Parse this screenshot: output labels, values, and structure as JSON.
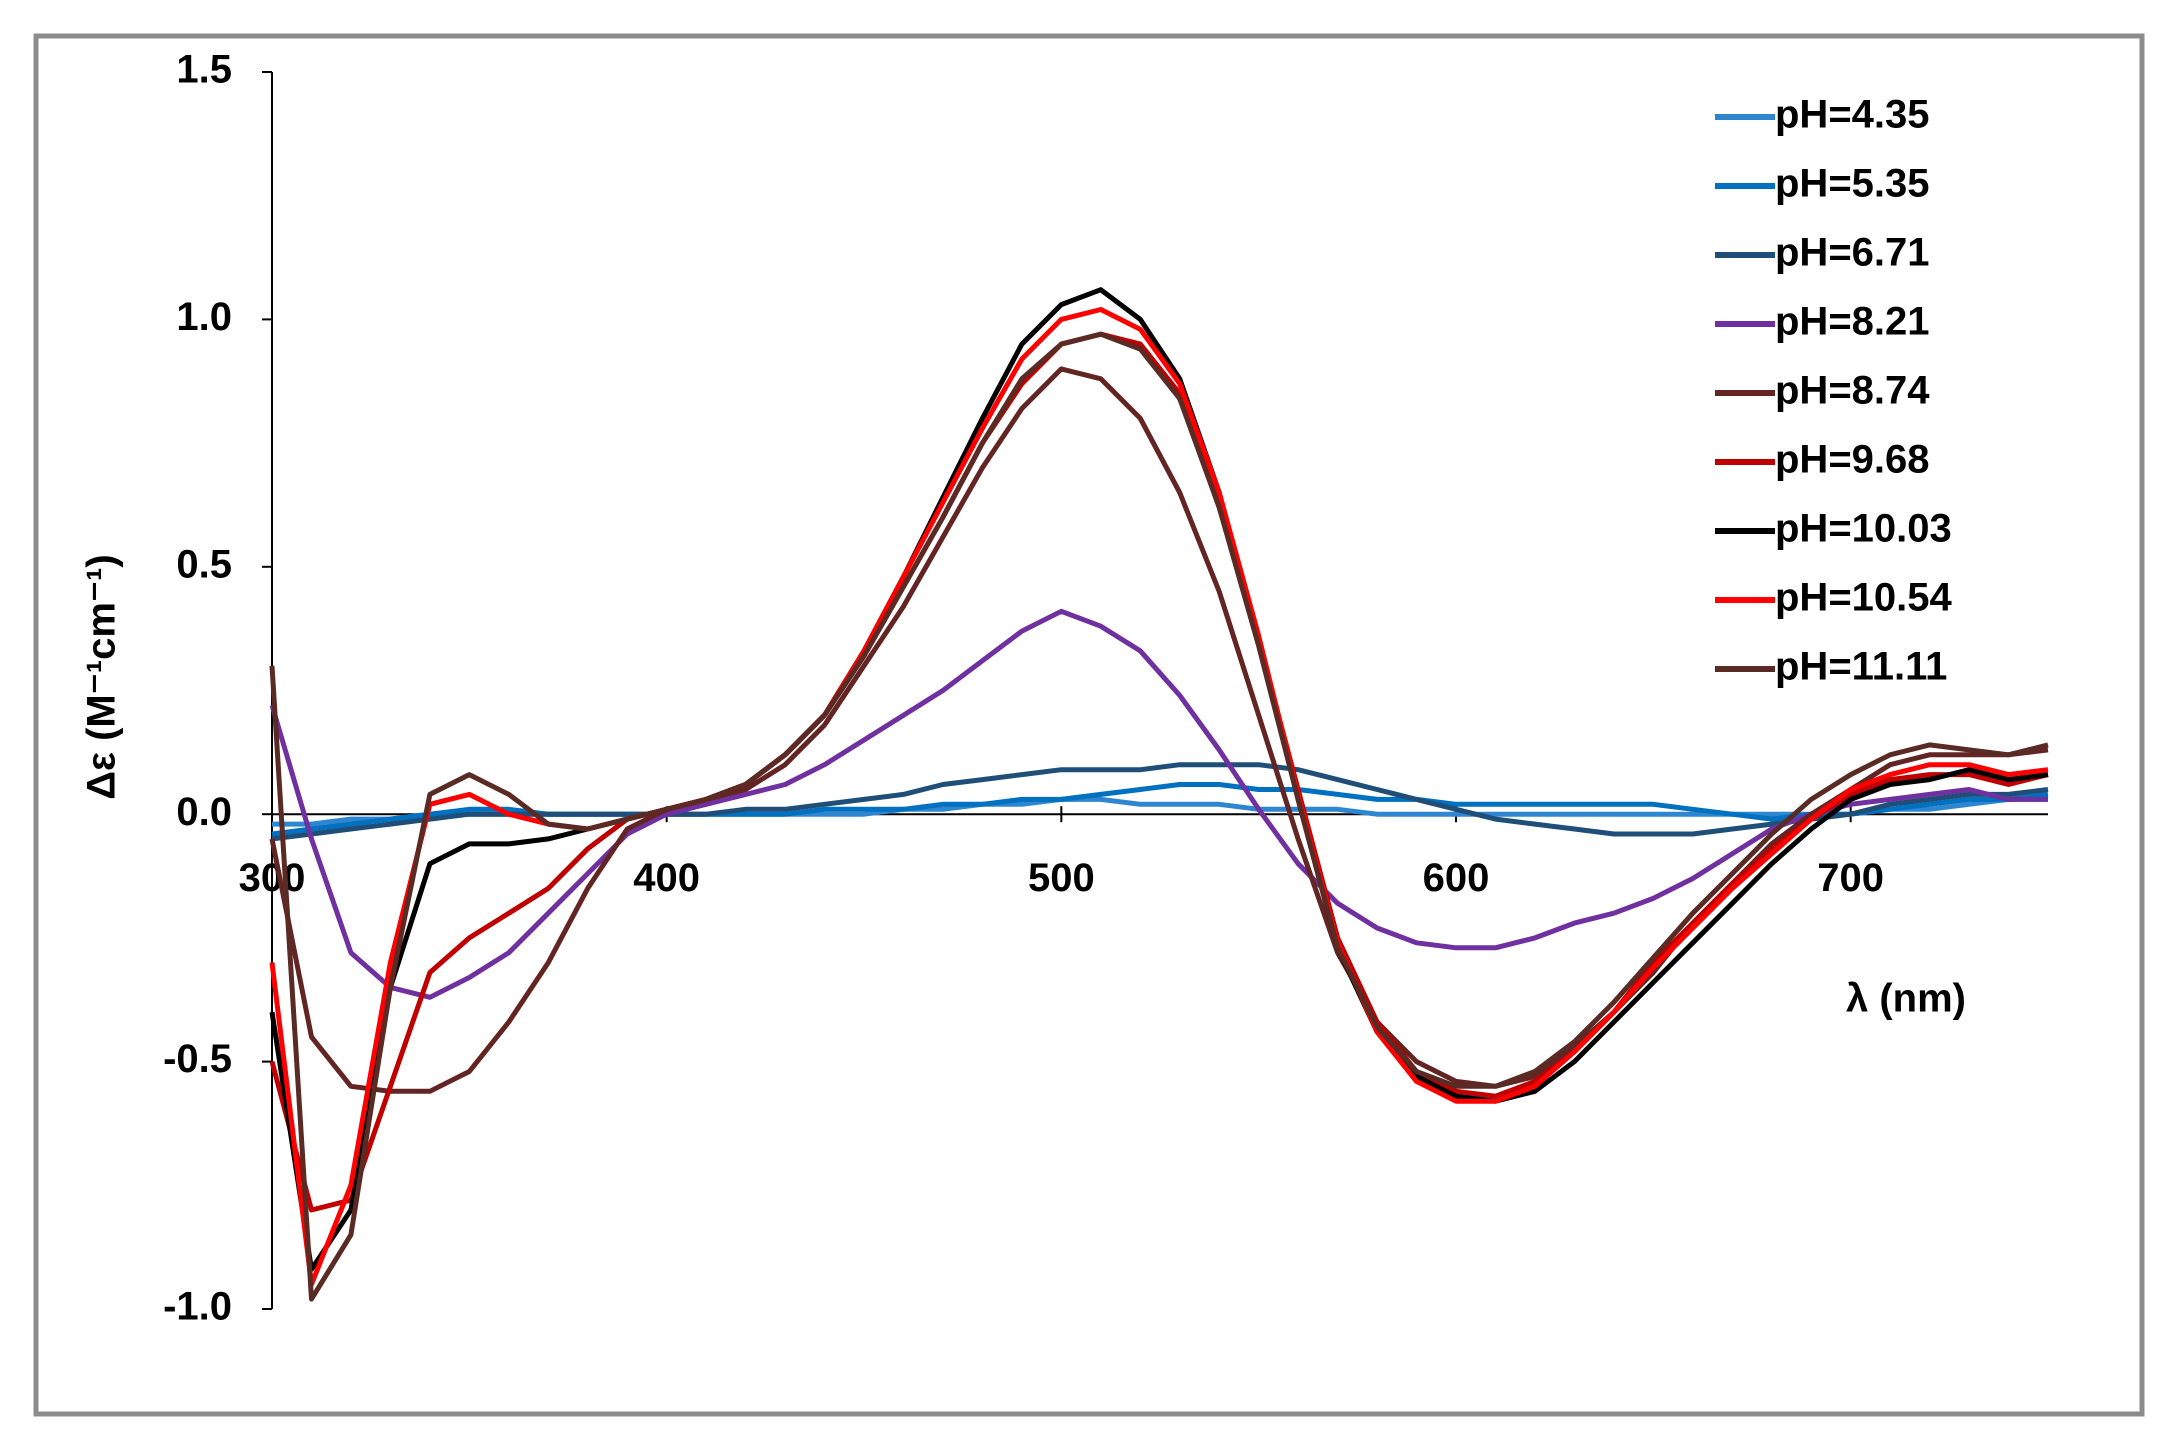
{
  "chart_data": {
    "type": "line",
    "y_label": "Δε (M⁻¹cm⁻¹)",
    "x_label": "λ (nm)",
    "x": [
      300,
      310,
      320,
      330,
      340,
      350,
      360,
      370,
      380,
      390,
      400,
      410,
      420,
      430,
      440,
      450,
      460,
      470,
      480,
      490,
      500,
      510,
      520,
      530,
      540,
      550,
      560,
      570,
      580,
      590,
      600,
      610,
      620,
      630,
      640,
      650,
      660,
      670,
      680,
      690,
      700,
      710,
      720,
      730,
      740,
      750
    ],
    "xlim": [
      300,
      750
    ],
    "xticks": [
      300,
      400,
      500,
      600,
      700
    ],
    "ylim": [
      -1.0,
      1.5
    ],
    "yticks": [
      {
        "value": 1.5,
        "label": "1.5"
      },
      {
        "value": 1.0,
        "label": "1.0"
      },
      {
        "value": 0.5,
        "label": "0.5"
      },
      {
        "value": 0,
        "label": "0.0"
      },
      {
        "value": -0.5,
        "label": "-0.5"
      },
      {
        "value": -1.0,
        "label": "-1.0"
      }
    ],
    "legend": "upper right",
    "series": [
      {
        "name": "pH=4.35",
        "color": "#2e86d1",
        "values": [
          -0.02,
          -0.02,
          -0.01,
          -0.01,
          0,
          0,
          0,
          0,
          0,
          0,
          0,
          0,
          0,
          0,
          0,
          0,
          0.01,
          0.01,
          0.02,
          0.02,
          0.03,
          0.03,
          0.02,
          0.02,
          0.02,
          0.01,
          0.01,
          0.01,
          0,
          0,
          0,
          0,
          0,
          0,
          0,
          0,
          0,
          0,
          0,
          0,
          0,
          0.01,
          0.01,
          0.02,
          0.03,
          0.03
        ]
      },
      {
        "name": "pH=5.35",
        "color": "#0070c0",
        "values": [
          -0.04,
          -0.03,
          -0.02,
          -0.01,
          0,
          0.01,
          0.01,
          0,
          0,
          0,
          0,
          0,
          0,
          0,
          0.01,
          0.01,
          0.01,
          0.02,
          0.02,
          0.03,
          0.03,
          0.04,
          0.05,
          0.06,
          0.06,
          0.05,
          0.05,
          0.04,
          0.03,
          0.03,
          0.02,
          0.02,
          0.02,
          0.02,
          0.02,
          0.02,
          0.01,
          0,
          -0.01,
          0,
          0,
          0.01,
          0.02,
          0.03,
          0.03,
          0.04
        ]
      },
      {
        "name": "pH=6.71",
        "color": "#1f4e79",
        "values": [
          -0.05,
          -0.04,
          -0.03,
          -0.02,
          -0.01,
          0,
          0,
          0,
          0,
          0,
          0,
          0,
          0.01,
          0.01,
          0.02,
          0.03,
          0.04,
          0.06,
          0.07,
          0.08,
          0.09,
          0.09,
          0.09,
          0.1,
          0.1,
          0.1,
          0.09,
          0.07,
          0.05,
          0.03,
          0.01,
          -0.01,
          -0.02,
          -0.03,
          -0.04,
          -0.04,
          -0.04,
          -0.03,
          -0.02,
          -0.01,
          0,
          0.02,
          0.03,
          0.04,
          0.04,
          0.05
        ]
      },
      {
        "name": "pH=8.21",
        "color": "#7030a0",
        "values": [
          0.22,
          -0.05,
          -0.28,
          -0.35,
          -0.37,
          -0.33,
          -0.28,
          -0.2,
          -0.12,
          -0.04,
          0,
          0.02,
          0.04,
          0.06,
          0.1,
          0.15,
          0.2,
          0.25,
          0.31,
          0.37,
          0.41,
          0.38,
          0.33,
          0.24,
          0.13,
          0.01,
          -0.1,
          -0.18,
          -0.23,
          -0.26,
          -0.27,
          -0.27,
          -0.25,
          -0.22,
          -0.2,
          -0.17,
          -0.13,
          -0.08,
          -0.03,
          0,
          0.02,
          0.03,
          0.04,
          0.05,
          0.03,
          0.03
        ]
      },
      {
        "name": "pH=8.74",
        "color": "#632523",
        "values": [
          -0.05,
          -0.45,
          -0.55,
          -0.56,
          -0.56,
          -0.52,
          -0.42,
          -0.3,
          -0.15,
          -0.03,
          0.01,
          0.03,
          0.05,
          0.1,
          0.18,
          0.3,
          0.42,
          0.56,
          0.7,
          0.82,
          0.9,
          0.88,
          0.8,
          0.65,
          0.45,
          0.2,
          -0.05,
          -0.28,
          -0.42,
          -0.5,
          -0.54,
          -0.55,
          -0.53,
          -0.47,
          -0.4,
          -0.32,
          -0.22,
          -0.14,
          -0.06,
          0,
          0.05,
          0.1,
          0.12,
          0.12,
          0.12,
          0.13
        ]
      },
      {
        "name": "pH=9.68",
        "color": "#c00000",
        "values": [
          -0.5,
          -0.8,
          -0.78,
          -0.55,
          -0.32,
          -0.25,
          -0.2,
          -0.15,
          -0.07,
          -0.01,
          0.01,
          0.03,
          0.06,
          0.12,
          0.2,
          0.32,
          0.46,
          0.6,
          0.75,
          0.87,
          0.95,
          0.97,
          0.95,
          0.85,
          0.62,
          0.35,
          0.05,
          -0.25,
          -0.42,
          -0.52,
          -0.56,
          -0.57,
          -0.54,
          -0.48,
          -0.4,
          -0.3,
          -0.22,
          -0.14,
          -0.07,
          -0.01,
          0.04,
          0.07,
          0.08,
          0.08,
          0.06,
          0.08
        ]
      },
      {
        "name": "pH=10.03",
        "color": "#000000",
        "values": [
          -0.4,
          -0.92,
          -0.8,
          -0.35,
          -0.1,
          -0.06,
          -0.06,
          -0.05,
          -0.03,
          -0.01,
          0.01,
          0.03,
          0.06,
          0.12,
          0.2,
          0.33,
          0.48,
          0.64,
          0.8,
          0.95,
          1.03,
          1.06,
          1.0,
          0.88,
          0.65,
          0.35,
          0.03,
          -0.27,
          -0.44,
          -0.53,
          -0.57,
          -0.58,
          -0.56,
          -0.5,
          -0.42,
          -0.34,
          -0.26,
          -0.18,
          -0.1,
          -0.03,
          0.03,
          0.06,
          0.07,
          0.09,
          0.07,
          0.08
        ]
      },
      {
        "name": "pH=10.54",
        "color": "#ff0000",
        "values": [
          -0.3,
          -0.95,
          -0.75,
          -0.3,
          0.02,
          0.04,
          0,
          -0.02,
          -0.03,
          -0.01,
          0.01,
          0.03,
          0.06,
          0.12,
          0.2,
          0.33,
          0.48,
          0.63,
          0.78,
          0.92,
          1.0,
          1.02,
          0.98,
          0.87,
          0.65,
          0.36,
          0.04,
          -0.26,
          -0.44,
          -0.54,
          -0.58,
          -0.58,
          -0.55,
          -0.48,
          -0.4,
          -0.31,
          -0.23,
          -0.15,
          -0.08,
          -0.01,
          0.05,
          0.08,
          0.1,
          0.1,
          0.08,
          0.09
        ]
      },
      {
        "name": "pH=11.11",
        "color": "#5a2a24",
        "values": [
          0.3,
          -0.98,
          -0.85,
          -0.35,
          0.04,
          0.08,
          0.04,
          -0.02,
          -0.03,
          -0.01,
          0.01,
          0.03,
          0.06,
          0.12,
          0.2,
          0.32,
          0.46,
          0.6,
          0.75,
          0.88,
          0.95,
          0.97,
          0.94,
          0.84,
          0.62,
          0.34,
          0.03,
          -0.27,
          -0.43,
          -0.52,
          -0.55,
          -0.55,
          -0.52,
          -0.46,
          -0.38,
          -0.29,
          -0.2,
          -0.12,
          -0.04,
          0.03,
          0.08,
          0.12,
          0.14,
          0.13,
          0.12,
          0.14
        ]
      }
    ]
  }
}
